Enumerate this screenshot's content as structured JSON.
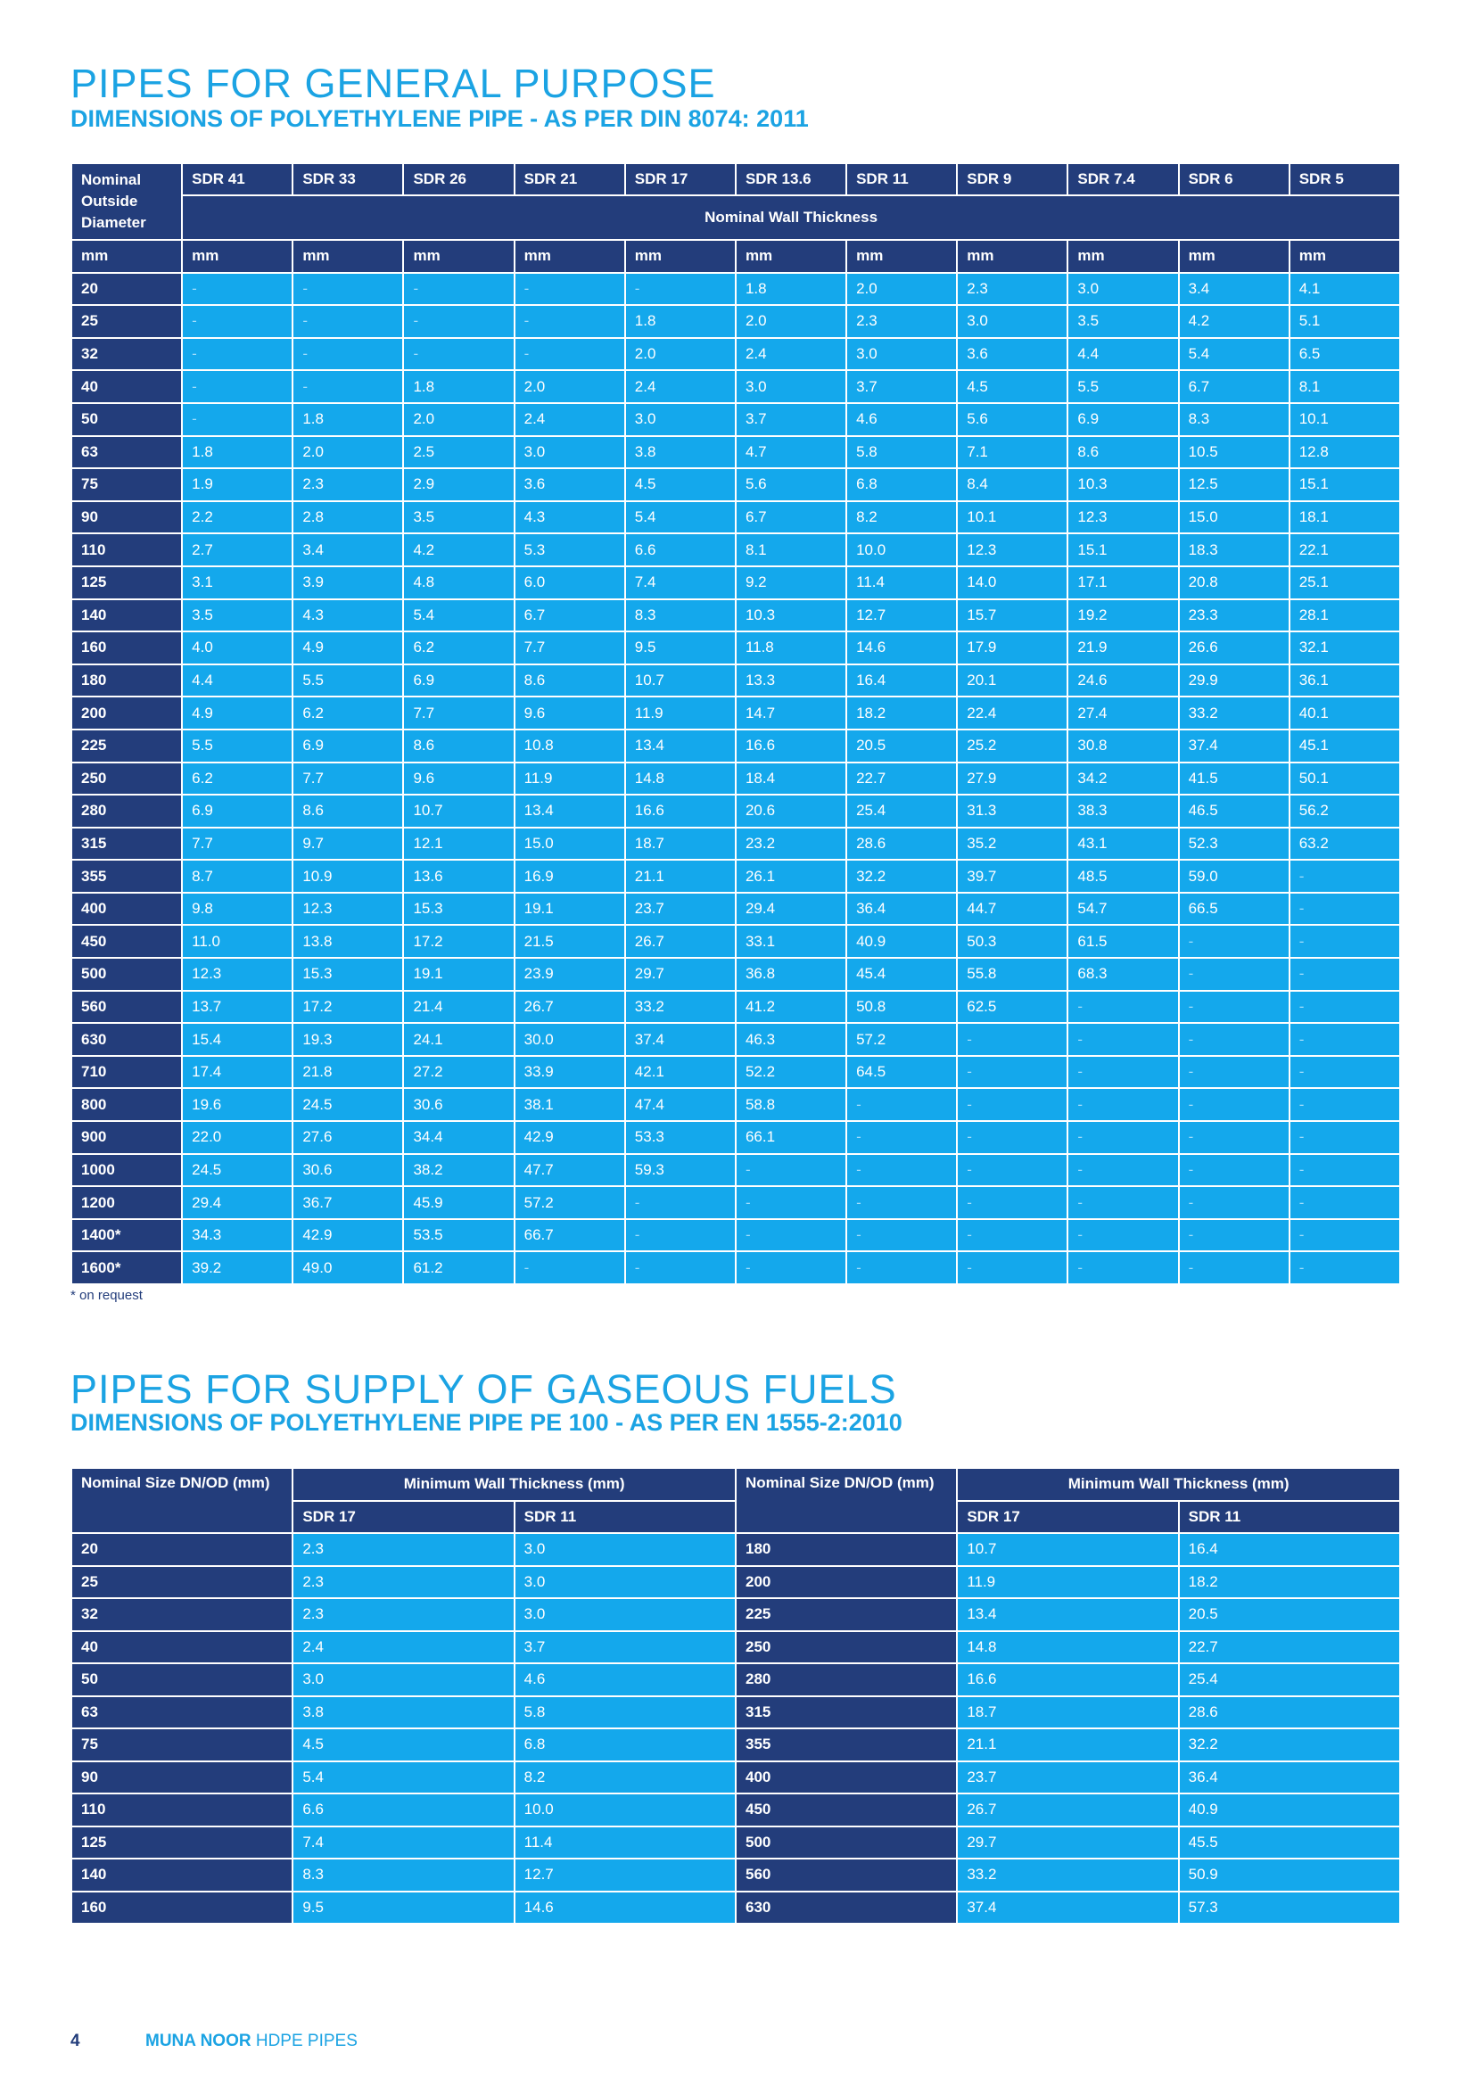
{
  "section1": {
    "title": "PIPES FOR GENERAL PURPOSE",
    "subtitle": "DIMENSIONS OF POLYETHYLENE PIPE - AS PER DIN 8074: 2011",
    "table": {
      "corner": "Nominal Outside Diameter",
      "columns": [
        "SDR 41",
        "SDR 33",
        "SDR 26",
        "SDR 21",
        "SDR 17",
        "SDR 13.6",
        "SDR 11",
        "SDR 9",
        "SDR 7.4",
        "SDR 6",
        "SDR 5"
      ],
      "span_label": "Nominal Wall Thickness",
      "units": [
        "mm",
        "mm",
        "mm",
        "mm",
        "mm",
        "mm",
        "mm",
        "mm",
        "mm",
        "mm",
        "mm",
        "mm"
      ],
      "rows": [
        [
          "20",
          "-",
          "-",
          "-",
          "-",
          "-",
          "1.8",
          "2.0",
          "2.3",
          "3.0",
          "3.4",
          "4.1"
        ],
        [
          "25",
          "-",
          "-",
          "-",
          "-",
          "1.8",
          "2.0",
          "2.3",
          "3.0",
          "3.5",
          "4.2",
          "5.1"
        ],
        [
          "32",
          "-",
          "-",
          "-",
          "-",
          "2.0",
          "2.4",
          "3.0",
          "3.6",
          "4.4",
          "5.4",
          "6.5"
        ],
        [
          "40",
          "-",
          "-",
          "1.8",
          "2.0",
          "2.4",
          "3.0",
          "3.7",
          "4.5",
          "5.5",
          "6.7",
          "8.1"
        ],
        [
          "50",
          "-",
          "1.8",
          "2.0",
          "2.4",
          "3.0",
          "3.7",
          "4.6",
          "5.6",
          "6.9",
          "8.3",
          "10.1"
        ],
        [
          "63",
          "1.8",
          "2.0",
          "2.5",
          "3.0",
          "3.8",
          "4.7",
          "5.8",
          "7.1",
          "8.6",
          "10.5",
          "12.8"
        ],
        [
          "75",
          "1.9",
          "2.3",
          "2.9",
          "3.6",
          "4.5",
          "5.6",
          "6.8",
          "8.4",
          "10.3",
          "12.5",
          "15.1"
        ],
        [
          "90",
          "2.2",
          "2.8",
          "3.5",
          "4.3",
          "5.4",
          "6.7",
          "8.2",
          "10.1",
          "12.3",
          "15.0",
          "18.1"
        ],
        [
          "110",
          "2.7",
          "3.4",
          "4.2",
          "5.3",
          "6.6",
          "8.1",
          "10.0",
          "12.3",
          "15.1",
          "18.3",
          "22.1"
        ],
        [
          "125",
          "3.1",
          "3.9",
          "4.8",
          "6.0",
          "7.4",
          "9.2",
          "11.4",
          "14.0",
          "17.1",
          "20.8",
          "25.1"
        ],
        [
          "140",
          "3.5",
          "4.3",
          "5.4",
          "6.7",
          "8.3",
          "10.3",
          "12.7",
          "15.7",
          "19.2",
          "23.3",
          "28.1"
        ],
        [
          "160",
          "4.0",
          "4.9",
          "6.2",
          "7.7",
          "9.5",
          "11.8",
          "14.6",
          "17.9",
          "21.9",
          "26.6",
          "32.1"
        ],
        [
          "180",
          "4.4",
          "5.5",
          "6.9",
          "8.6",
          "10.7",
          "13.3",
          "16.4",
          "20.1",
          "24.6",
          "29.9",
          "36.1"
        ],
        [
          "200",
          "4.9",
          "6.2",
          "7.7",
          "9.6",
          "11.9",
          "14.7",
          "18.2",
          "22.4",
          "27.4",
          "33.2",
          "40.1"
        ],
        [
          "225",
          "5.5",
          "6.9",
          "8.6",
          "10.8",
          "13.4",
          "16.6",
          "20.5",
          "25.2",
          "30.8",
          "37.4",
          "45.1"
        ],
        [
          "250",
          "6.2",
          "7.7",
          "9.6",
          "11.9",
          "14.8",
          "18.4",
          "22.7",
          "27.9",
          "34.2",
          "41.5",
          "50.1"
        ],
        [
          "280",
          "6.9",
          "8.6",
          "10.7",
          "13.4",
          "16.6",
          "20.6",
          "25.4",
          "31.3",
          "38.3",
          "46.5",
          "56.2"
        ],
        [
          "315",
          "7.7",
          "9.7",
          "12.1",
          "15.0",
          "18.7",
          "23.2",
          "28.6",
          "35.2",
          "43.1",
          "52.3",
          "63.2"
        ],
        [
          "355",
          "8.7",
          "10.9",
          "13.6",
          "16.9",
          "21.1",
          "26.1",
          "32.2",
          "39.7",
          "48.5",
          "59.0",
          "-"
        ],
        [
          "400",
          "9.8",
          "12.3",
          "15.3",
          "19.1",
          "23.7",
          "29.4",
          "36.4",
          "44.7",
          "54.7",
          "66.5",
          "-"
        ],
        [
          "450",
          "11.0",
          "13.8",
          "17.2",
          "21.5",
          "26.7",
          "33.1",
          "40.9",
          "50.3",
          "61.5",
          "-",
          "-"
        ],
        [
          "500",
          "12.3",
          "15.3",
          "19.1",
          "23.9",
          "29.7",
          "36.8",
          "45.4",
          "55.8",
          "68.3",
          "-",
          "-"
        ],
        [
          "560",
          "13.7",
          "17.2",
          "21.4",
          "26.7",
          "33.2",
          "41.2",
          "50.8",
          "62.5",
          "-",
          "-",
          "-"
        ],
        [
          "630",
          "15.4",
          "19.3",
          "24.1",
          "30.0",
          "37.4",
          "46.3",
          "57.2",
          "-",
          "-",
          "-",
          "-"
        ],
        [
          "710",
          "17.4",
          "21.8",
          "27.2",
          "33.9",
          "42.1",
          "52.2",
          "64.5",
          "-",
          "-",
          "-",
          "-"
        ],
        [
          "800",
          "19.6",
          "24.5",
          "30.6",
          "38.1",
          "47.4",
          "58.8",
          "-",
          "-",
          "-",
          "-",
          "-"
        ],
        [
          "900",
          "22.0",
          "27.6",
          "34.4",
          "42.9",
          "53.3",
          "66.1",
          "-",
          "-",
          "-",
          "-",
          "-"
        ],
        [
          "1000",
          "24.5",
          "30.6",
          "38.2",
          "47.7",
          "59.3",
          "-",
          "-",
          "-",
          "-",
          "-",
          "-"
        ],
        [
          "1200",
          "29.4",
          "36.7",
          "45.9",
          "57.2",
          "-",
          "-",
          "-",
          "-",
          "-",
          "-",
          "-"
        ],
        [
          "1400*",
          "34.3",
          "42.9",
          "53.5",
          "66.7",
          "-",
          "-",
          "-",
          "-",
          "-",
          "-",
          "-"
        ],
        [
          "1600*",
          "39.2",
          "49.0",
          "61.2",
          "-",
          "-",
          "-",
          "-",
          "-",
          "-",
          "-",
          "-"
        ]
      ]
    },
    "note": "* on request"
  },
  "section2": {
    "title": "PIPES FOR SUPPLY OF GASEOUS FUELS",
    "subtitle": "DIMENSIONS OF POLYETHYLENE PIPE PE 100 - AS PER EN 1555-2:2010",
    "table": {
      "groups": [
        {
          "size_label": "Nominal Size DN/OD (mm)",
          "thickness_label": "Minimum Wall Thickness (mm)",
          "sdr": [
            "SDR 17",
            "SDR 11"
          ]
        },
        {
          "size_label": "Nominal Size DN/OD (mm)",
          "thickness_label": "Minimum Wall Thickness (mm)",
          "sdr": [
            "SDR 17",
            "SDR 11"
          ]
        }
      ],
      "rows": [
        [
          "20",
          "2.3",
          "3.0",
          "180",
          "10.7",
          "16.4"
        ],
        [
          "25",
          "2.3",
          "3.0",
          "200",
          "11.9",
          "18.2"
        ],
        [
          "32",
          "2.3",
          "3.0",
          "225",
          "13.4",
          "20.5"
        ],
        [
          "40",
          "2.4",
          "3.7",
          "250",
          "14.8",
          "22.7"
        ],
        [
          "50",
          "3.0",
          "4.6",
          "280",
          "16.6",
          "25.4"
        ],
        [
          "63",
          "3.8",
          "5.8",
          "315",
          "18.7",
          "28.6"
        ],
        [
          "75",
          "4.5",
          "6.8",
          "355",
          "21.1",
          "32.2"
        ],
        [
          "90",
          "5.4",
          "8.2",
          "400",
          "23.7",
          "36.4"
        ],
        [
          "110",
          "6.6",
          "10.0",
          "450",
          "26.7",
          "40.9"
        ],
        [
          "125",
          "7.4",
          "11.4",
          "500",
          "29.7",
          "45.5"
        ],
        [
          "140",
          "8.3",
          "12.7",
          "560",
          "33.2",
          "50.9"
        ],
        [
          "160",
          "9.5",
          "14.6",
          "630",
          "37.4",
          "57.3"
        ]
      ]
    }
  },
  "footer": {
    "page": "4",
    "brand": "MUNA NOOR",
    "product": "HDPE PIPES"
  }
}
